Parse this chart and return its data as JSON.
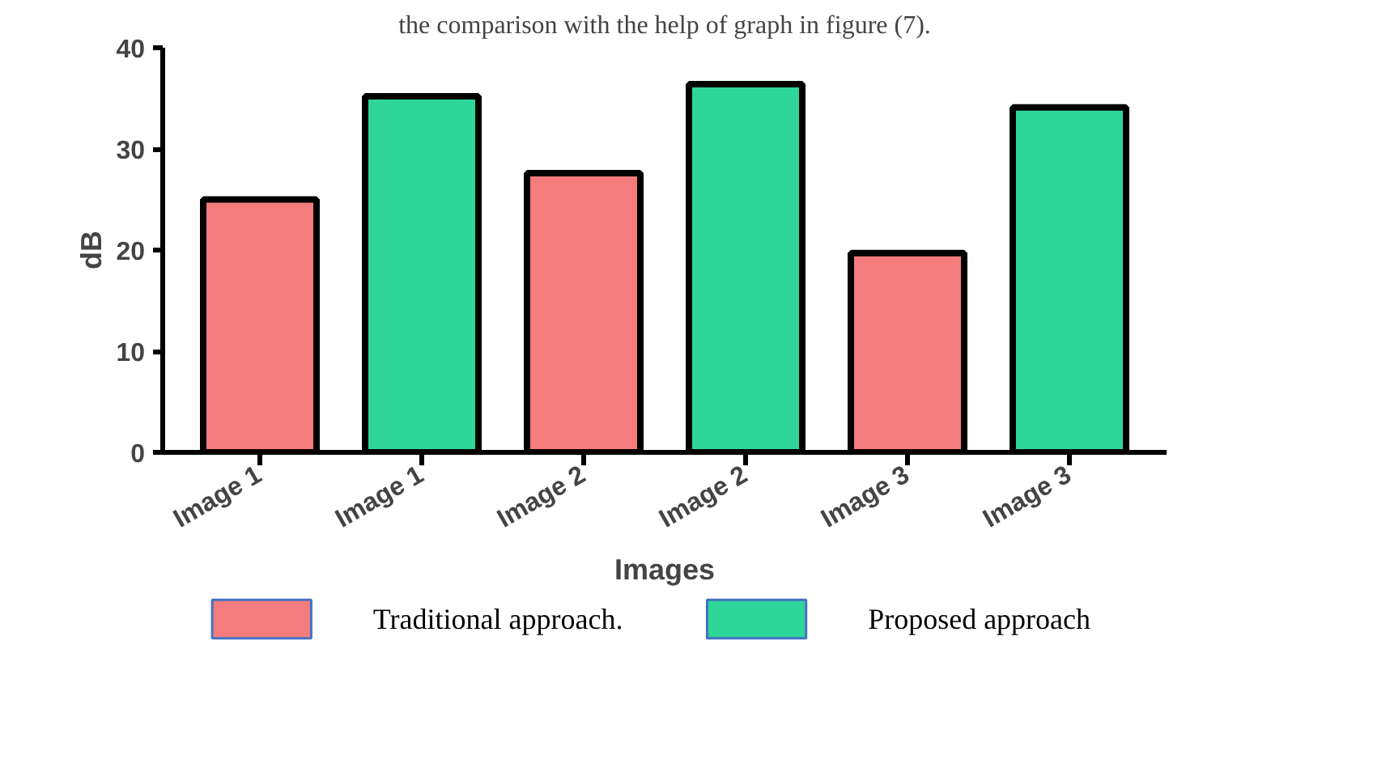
{
  "chart_data": {
    "type": "bar",
    "ylabel": "dB",
    "xlabel": "Images",
    "categories": [
      "Image 1",
      "Image 1",
      "Image 2",
      "Image 2",
      "Image 3",
      "Image 3"
    ],
    "series": [
      {
        "name": "Traditional approach.",
        "color": "#f47c7c",
        "values": [
          25,
          null,
          27.6,
          null,
          19.7,
          null
        ]
      },
      {
        "name": "Proposed approach",
        "color": "#2fd69a",
        "values": [
          null,
          35.2,
          null,
          36.4,
          null,
          34.1
        ]
      }
    ],
    "ylim": [
      0,
      40
    ],
    "yticks": [
      0,
      10,
      20,
      30,
      40
    ],
    "grid": false,
    "legend": "bottom",
    "annotations": [
      "the comparison with the help of graph in figure (7)."
    ]
  }
}
